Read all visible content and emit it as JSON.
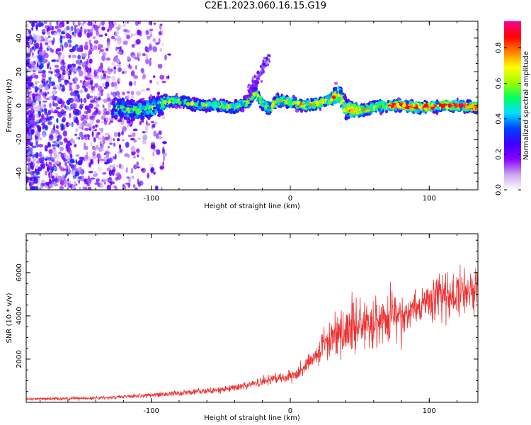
{
  "figure_title": "C2E1.2023.060.16.15.G19",
  "chart_data": [
    {
      "type": "heatmap",
      "title": "C2E1.2023.060.16.15.G19",
      "xlabel": "Height of straight line (km)",
      "ylabel": "Frequency (Hz)",
      "xlim": [
        -190,
        135
      ],
      "ylim": [
        -50,
        50
      ],
      "x_ticks": [
        -100,
        0,
        100
      ],
      "y_ticks": [
        -40,
        -20,
        0,
        20,
        40
      ],
      "colorbar": {
        "label": "Normalized spectral amplitude",
        "range": [
          0,
          0.95
        ],
        "ticks": [
          0.0,
          0.2,
          0.4,
          0.6,
          0.8
        ],
        "colormap": [
          "#ffffff",
          "#c9a6f0",
          "#8a00ff",
          "#3e00ff",
          "#0040ff",
          "#00e0ff",
          "#00ff60",
          "#a0ff00",
          "#ffff00",
          "#ff8000",
          "#ff0000",
          "#ff0090"
        ]
      },
      "ridge_profile": {
        "x": [
          -125,
          -110,
          -100,
          -90,
          -80,
          -70,
          -60,
          -50,
          -40,
          -30,
          -25,
          -20,
          -15,
          -10,
          0,
          10,
          20,
          30,
          35,
          40,
          50,
          60,
          70,
          80,
          90,
          100,
          110,
          120,
          135
        ],
        "frequency": [
          -2,
          -3,
          -2,
          2,
          3,
          1,
          0,
          0,
          -1,
          2,
          8,
          1,
          -2,
          3,
          2,
          0,
          1,
          4,
          7,
          -2,
          -3,
          -1,
          0,
          0,
          -1,
          -1,
          0,
          0,
          -1
        ]
      },
      "grid": false,
      "legend": "colorbar-right"
    },
    {
      "type": "line",
      "xlabel": "Height of straight line (km)",
      "ylabel": "SNR (10 * v/v)",
      "xlim": [
        -190,
        135
      ],
      "ylim": [
        0,
        7800
      ],
      "x_ticks": [
        -100,
        0,
        100
      ],
      "y_ticks": [
        2000,
        4000,
        6000
      ],
      "color": "#ee3030",
      "trend": {
        "x": [
          -190,
          -150,
          -130,
          -110,
          -90,
          -70,
          -50,
          -35,
          -25,
          -15,
          -5,
          5,
          15,
          25,
          35,
          45,
          55,
          65,
          75,
          85,
          95,
          105,
          115,
          125,
          135
        ],
        "y": [
          150,
          180,
          220,
          300,
          380,
          480,
          580,
          720,
          900,
          1050,
          1100,
          1350,
          1900,
          2650,
          3200,
          3500,
          3650,
          3750,
          3900,
          4150,
          4500,
          4750,
          4950,
          5100,
          5300
        ]
      },
      "grid": false,
      "legend": "none"
    }
  ]
}
